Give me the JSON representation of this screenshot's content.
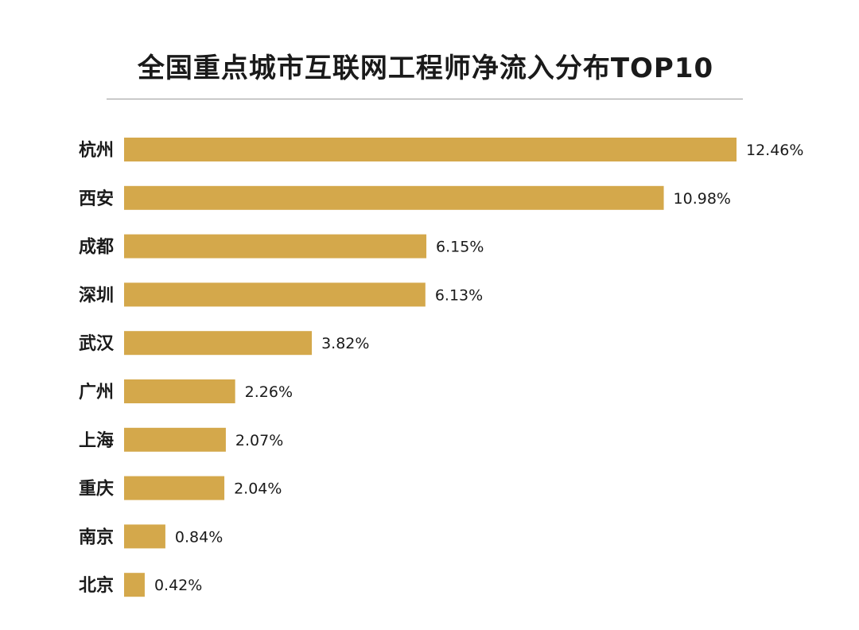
{
  "title": "全国重点城市互联网工程师净流入分布TOP10",
  "colors": {
    "bar": "#D4A84B",
    "text": "#1a1a1a",
    "divider": "#9a9a9a"
  },
  "chart_data": {
    "type": "bar",
    "orientation": "horizontal",
    "title": "全国重点城市互联网工程师净流入分布TOP10",
    "categories": [
      "杭州",
      "西安",
      "成都",
      "深圳",
      "武汉",
      "广州",
      "上海",
      "重庆",
      "南京",
      "北京"
    ],
    "values": [
      12.46,
      10.98,
      6.15,
      6.13,
      3.82,
      2.26,
      2.07,
      2.04,
      0.84,
      0.42
    ],
    "value_labels": [
      "12.46%",
      "10.98%",
      "6.15%",
      "6.13%",
      "3.82%",
      "2.26%",
      "2.07%",
      "2.04%",
      "0.84%",
      "0.42%"
    ],
    "xlim": [
      0,
      12.46
    ],
    "grid": false,
    "legend": "none"
  }
}
